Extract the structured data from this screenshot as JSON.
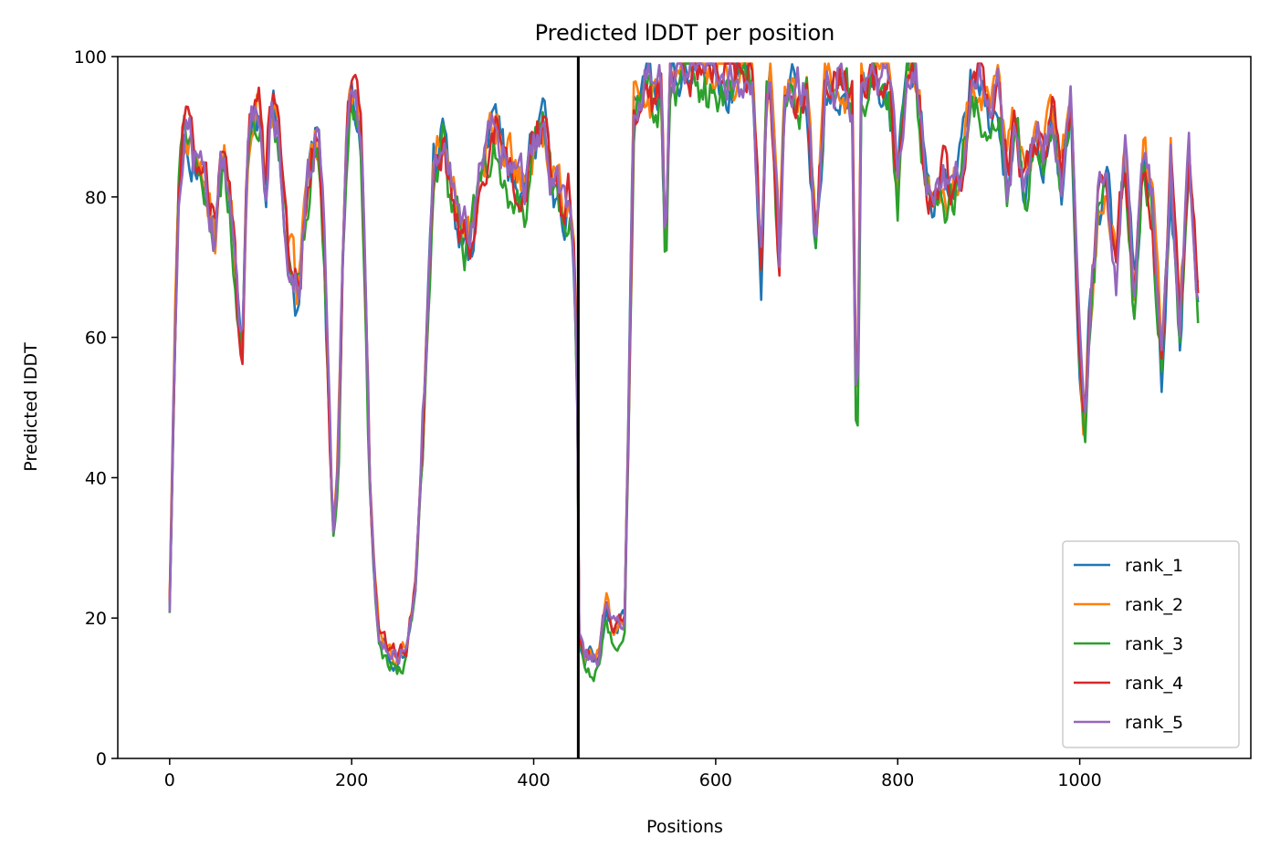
{
  "chart_data": {
    "type": "line",
    "title": "Predicted lDDT per position",
    "xlabel": "Positions",
    "ylabel": "Predicted lDDT",
    "xlim": [
      -57,
      1188
    ],
    "ylim": [
      0,
      100
    ],
    "xticks": [
      0,
      200,
      400,
      600,
      800,
      1000
    ],
    "yticks": [
      0,
      20,
      40,
      60,
      80,
      100
    ],
    "xtick_labels": [
      "0",
      "200",
      "400",
      "600",
      "800",
      "1000"
    ],
    "ytick_labels": [
      "0",
      "20",
      "40",
      "60",
      "80",
      "100"
    ],
    "grid": false,
    "legend_position": "lower-right",
    "annotations": [
      {
        "type": "vertical-line",
        "x": 449,
        "color": "#000000",
        "meaning": "chain boundary"
      }
    ],
    "base_profile": {
      "x": [
        0,
        5,
        10,
        15,
        20,
        25,
        30,
        35,
        40,
        45,
        50,
        55,
        60,
        65,
        70,
        75,
        80,
        85,
        90,
        95,
        100,
        105,
        110,
        115,
        120,
        125,
        130,
        135,
        140,
        145,
        150,
        155,
        160,
        165,
        170,
        175,
        180,
        185,
        190,
        195,
        200,
        205,
        210,
        215,
        220,
        225,
        230,
        240,
        250,
        260,
        270,
        280,
        290,
        300,
        310,
        320,
        330,
        340,
        350,
        360,
        370,
        380,
        390,
        400,
        410,
        420,
        430,
        440,
        445,
        449,
        450,
        455,
        460,
        470,
        480,
        485,
        490,
        500,
        510,
        520,
        525,
        530,
        540,
        545,
        550,
        560,
        570,
        580,
        590,
        600,
        610,
        620,
        640,
        650,
        655,
        660,
        670,
        675,
        680,
        690,
        700,
        710,
        720,
        730,
        740,
        750,
        755,
        760,
        770,
        780,
        790,
        800,
        810,
        820,
        830,
        840,
        850,
        860,
        870,
        880,
        890,
        900,
        910,
        920,
        930,
        940,
        950,
        960,
        970,
        980,
        990,
        1000,
        1005,
        1010,
        1020,
        1030,
        1040,
        1050,
        1060,
        1070,
        1080,
        1090,
        1100,
        1110,
        1120,
        1130
      ],
      "y": [
        21,
        55,
        83,
        90,
        90,
        86,
        84,
        82,
        80,
        78,
        73,
        83,
        85,
        80,
        74,
        62,
        58,
        85,
        92,
        94,
        92,
        80,
        90,
        92,
        88,
        80,
        72,
        70,
        66,
        70,
        80,
        84,
        88,
        85,
        72,
        48,
        32,
        40,
        70,
        90,
        94,
        93,
        88,
        70,
        40,
        25,
        18,
        15,
        14,
        16,
        24,
        50,
        85,
        88,
        80,
        75,
        73,
        82,
        88,
        90,
        84,
        82,
        80,
        88,
        90,
        82,
        78,
        80,
        70,
        45,
        17,
        14,
        14,
        14,
        22,
        18,
        18,
        20,
        92,
        96,
        97,
        94,
        95,
        70,
        96,
        97,
        98,
        98,
        96,
        98,
        97,
        97,
        98,
        70,
        94,
        98,
        70,
        93,
        94,
        95,
        96,
        73,
        95,
        96,
        97,
        93,
        42,
        97,
        98,
        97,
        97,
        82,
        98,
        97,
        85,
        78,
        82,
        80,
        84,
        95,
        96,
        92,
        95,
        82,
        90,
        82,
        88,
        85,
        90,
        82,
        94,
        58,
        46,
        60,
        78,
        82,
        70,
        85,
        65,
        86,
        78,
        55,
        85,
        60,
        85,
        65
      ]
    },
    "series": [
      {
        "name": "rank_1",
        "color": "#1f77b4",
        "seed": 11,
        "offset": 0.0
      },
      {
        "name": "rank_2",
        "color": "#ff7f0e",
        "seed": 23,
        "offset": 0.8
      },
      {
        "name": "rank_3",
        "color": "#2ca02c",
        "seed": 37,
        "offset": -1.2
      },
      {
        "name": "rank_4",
        "color": "#d62728",
        "seed": 51,
        "offset": 0.3
      },
      {
        "name": "rank_5",
        "color": "#9467bd",
        "seed": 67,
        "offset": 0.5
      }
    ],
    "x_range": [
      0,
      1130
    ]
  }
}
